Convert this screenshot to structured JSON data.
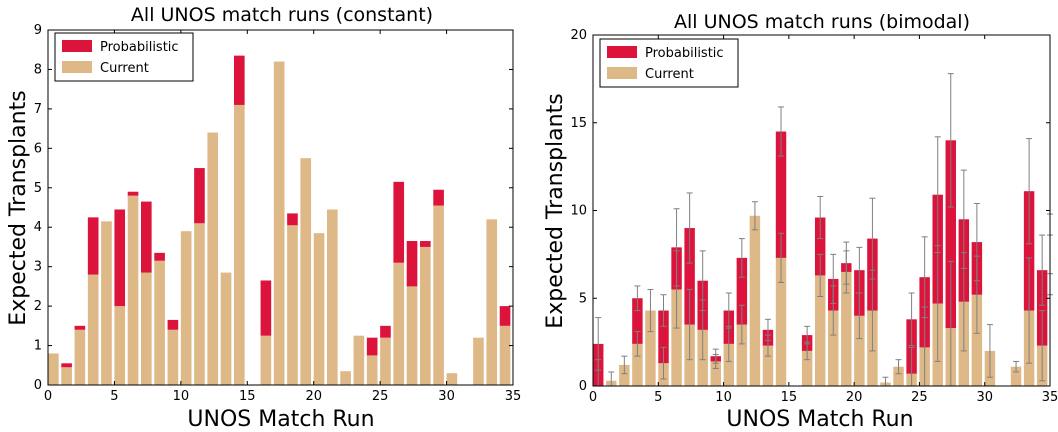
{
  "colors": {
    "probabilistic": "#dc143c",
    "current": "#deb887",
    "errorbar": "#808080"
  },
  "chart_data": [
    {
      "type": "bar",
      "stacked": true,
      "title": "All UNOS match runs (constant)",
      "xlabel": "UNOS Match Run",
      "ylabel": "Expected Transplants",
      "xlim": [
        0,
        35
      ],
      "ylim": [
        0,
        9
      ],
      "xticks": [
        "0",
        "5",
        "10",
        "15",
        "20",
        "25",
        "30",
        "35"
      ],
      "yticks": [
        "0",
        "1",
        "2",
        "3",
        "4",
        "5",
        "6",
        "7",
        "8",
        "9"
      ],
      "legend": {
        "position": "top-left",
        "entries": [
          "Probabilistic",
          "Current"
        ]
      },
      "x": [
        0,
        1,
        2,
        3,
        4,
        5,
        6,
        7,
        8,
        9,
        10,
        11,
        12,
        13,
        14,
        15,
        16,
        17,
        18,
        19,
        20,
        21,
        22,
        23,
        24,
        25,
        26,
        27,
        28,
        29,
        30,
        31,
        32,
        33,
        34,
        35
      ],
      "series": [
        {
          "name": "Current",
          "values": [
            0.8,
            0.45,
            1.4,
            2.8,
            4.15,
            2.0,
            4.8,
            2.85,
            3.15,
            1.4,
            3.9,
            4.1,
            6.4,
            2.85,
            7.1,
            0,
            1.25,
            8.2,
            4.05,
            5.75,
            3.85,
            4.45,
            0.35,
            1.25,
            0.75,
            1.2,
            3.1,
            2.5,
            3.5,
            4.55,
            0.3,
            0,
            1.2,
            4.2,
            1.5,
            1.55
          ]
        },
        {
          "name": "Probabilistic",
          "values": [
            0,
            0.1,
            0.1,
            1.45,
            0,
            2.45,
            0.1,
            1.8,
            0.2,
            0.25,
            0,
            1.4,
            0,
            0,
            1.25,
            0,
            1.4,
            0,
            0.3,
            0,
            0,
            0,
            0,
            0,
            0.45,
            0.3,
            2.05,
            1.15,
            0.15,
            0.4,
            0,
            0,
            0,
            0,
            0.5,
            0.45
          ]
        }
      ]
    },
    {
      "type": "bar",
      "stacked": true,
      "title": "All UNOS match runs (bimodal)",
      "xlabel": "UNOS Match Run",
      "ylabel": "Expected Transplants",
      "xlim": [
        0,
        35
      ],
      "ylim": [
        0,
        20
      ],
      "xticks": [
        "0",
        "5",
        "10",
        "15",
        "20",
        "25",
        "30",
        "35"
      ],
      "yticks": [
        "0",
        "5",
        "10",
        "15",
        "20"
      ],
      "legend": {
        "position": "top-left",
        "entries": [
          "Probabilistic",
          "Current"
        ]
      },
      "x": [
        0,
        1,
        2,
        3,
        4,
        5,
        6,
        7,
        8,
        9,
        10,
        11,
        12,
        13,
        14,
        15,
        16,
        17,
        18,
        19,
        20,
        21,
        22,
        23,
        24,
        25,
        26,
        27,
        28,
        29,
        30,
        31,
        32,
        33,
        34,
        35
      ],
      "series": [
        {
          "name": "Current",
          "values": [
            0,
            0.3,
            1.2,
            2.4,
            4.3,
            1.3,
            5.5,
            3.5,
            3.2,
            1.4,
            2.4,
            3.5,
            9.7,
            2.3,
            7.3,
            0,
            2.0,
            6.3,
            4.3,
            6.5,
            4.0,
            4.3,
            0.2,
            1.1,
            0.7,
            2.2,
            4.7,
            3.3,
            4.8,
            5.2,
            2.0,
            0,
            1.1,
            4.3,
            2.3,
            6.9
          ]
        },
        {
          "name": "Probabilistic",
          "values": [
            2.4,
            0,
            0,
            2.6,
            0,
            3.0,
            2.4,
            5.5,
            2.8,
            0.3,
            1.9,
            3.8,
            0,
            0.9,
            7.2,
            0,
            0.9,
            3.3,
            1.8,
            0.5,
            2.6,
            4.1,
            0,
            0,
            3.1,
            4.0,
            6.2,
            10.7,
            4.7,
            3.0,
            0,
            0,
            0,
            6.8,
            4.3,
            1.2
          ]
        },
        {
          "name": "Error",
          "values": [
            1.5,
            0.5,
            0.5,
            0.7,
            1.2,
            0.9,
            2.2,
            2.0,
            1.7,
            0.4,
            1.0,
            1.1,
            0.8,
            0.6,
            1.4,
            0,
            0.5,
            1.2,
            1.4,
            1.2,
            1.3,
            2.3,
            0.3,
            0.4,
            1.5,
            2.3,
            3.3,
            3.8,
            2.8,
            2.2,
            1.5,
            0,
            0.3,
            3.0,
            2.0,
            1.7
          ]
        }
      ]
    }
  ]
}
